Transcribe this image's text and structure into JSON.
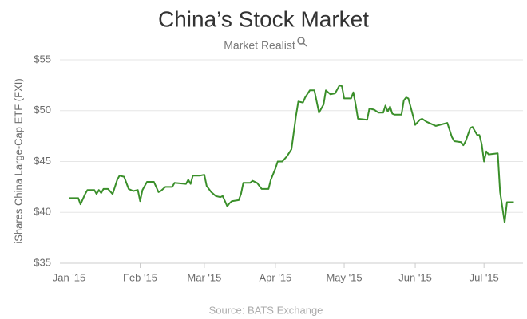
{
  "chart_data": {
    "type": "line",
    "title": "China’s Stock Market",
    "subtitle": "Market Realist",
    "ylabel": "iShares China Large-Cap ETF (FXI)",
    "source": "Source: BATS Exchange",
    "color": "#3a8f2a",
    "grid": true,
    "x": [
      0,
      4,
      5,
      7,
      8,
      11,
      12,
      13,
      14,
      15,
      17,
      19,
      21,
      22,
      24,
      26,
      28,
      30,
      31,
      32,
      34,
      37,
      39,
      40,
      42,
      45,
      46,
      51,
      52,
      53,
      54,
      57,
      59,
      60,
      62,
      64,
      66,
      67,
      69,
      70,
      71,
      74,
      75,
      76,
      79,
      80,
      82,
      84,
      87,
      88,
      90,
      91,
      93,
      95,
      97,
      99,
      100,
      102,
      103,
      105,
      107,
      109,
      111,
      112,
      114,
      116,
      118,
      119,
      120,
      123,
      124,
      125,
      126,
      130,
      131,
      133,
      135,
      137,
      138,
      139,
      140,
      141,
      142,
      145,
      146,
      147,
      148,
      150,
      151,
      153,
      154,
      156,
      160,
      165,
      167,
      168,
      171,
      172,
      173,
      175,
      176,
      178,
      179,
      180,
      181,
      182,
      183,
      187,
      188,
      190,
      191,
      194
    ],
    "values": [
      41.4,
      41.4,
      40.8,
      41.8,
      42.2,
      42.2,
      41.8,
      42.2,
      41.9,
      42.3,
      42.3,
      41.8,
      43.2,
      43.6,
      43.5,
      42.3,
      42.1,
      42.2,
      41.1,
      42.2,
      43.0,
      43.0,
      42.0,
      42.1,
      42.5,
      42.5,
      42.9,
      42.8,
      43.2,
      42.8,
      43.6,
      43.6,
      43.7,
      42.6,
      42.0,
      41.6,
      41.5,
      41.6,
      40.6,
      40.9,
      41.1,
      41.2,
      41.8,
      42.9,
      42.9,
      43.1,
      42.9,
      42.3,
      42.3,
      43.2,
      44.3,
      45.0,
      45.0,
      45.5,
      46.2,
      49.5,
      50.9,
      50.8,
      51.3,
      52.0,
      52.0,
      49.8,
      50.6,
      52.0,
      51.6,
      51.7,
      52.5,
      52.4,
      51.2,
      51.2,
      51.8,
      50.6,
      49.2,
      49.1,
      50.2,
      50.1,
      49.8,
      49.8,
      50.5,
      49.9,
      50.4,
      49.7,
      49.6,
      49.6,
      51.0,
      51.3,
      51.2,
      49.5,
      48.6,
      49.1,
      49.2,
      48.9,
      48.5,
      48.8,
      47.4,
      47.0,
      46.9,
      46.6,
      47.0,
      48.3,
      48.4,
      47.6,
      47.6,
      46.7,
      45.0,
      46.0,
      45.7,
      45.8,
      42.0,
      39.0,
      41.0,
      41.0
    ],
    "xlim": [
      -4,
      198
    ],
    "xticks": [
      {
        "value": 0,
        "label": "Jan '15"
      },
      {
        "value": 31,
        "label": "Feb '15"
      },
      {
        "value": 59,
        "label": "Mar '15"
      },
      {
        "value": 90,
        "label": "Apr '15"
      },
      {
        "value": 120,
        "label": "May '15"
      },
      {
        "value": 151,
        "label": "Jun '15"
      },
      {
        "value": 181,
        "label": "Jul '15"
      }
    ],
    "ylim": [
      35,
      55
    ],
    "yticks": [
      {
        "value": 35,
        "label": "$35"
      },
      {
        "value": 40,
        "label": "$40"
      },
      {
        "value": 45,
        "label": "$45"
      },
      {
        "value": 50,
        "label": "$50"
      },
      {
        "value": 55,
        "label": "$55"
      }
    ]
  }
}
